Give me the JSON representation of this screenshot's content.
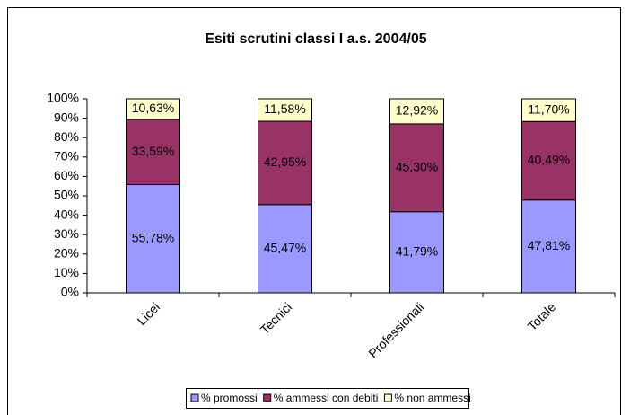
{
  "chart_data": {
    "type": "stacked_bar_100",
    "title": "Esiti scrutini classi I a.s. 2004/05",
    "categories": [
      "Licei",
      "Tecnici",
      "Professionali",
      "Totale"
    ],
    "series": [
      {
        "name": "% promossi",
        "color": "#9999ff",
        "values": [
          55.78,
          45.47,
          41.79,
          47.81
        ],
        "value_labels": [
          "55,78%",
          "45,47%",
          "41,79%",
          "47,81%"
        ]
      },
      {
        "name": "% ammessi con debiti",
        "color": "#993366",
        "values": [
          33.59,
          42.95,
          45.3,
          40.49
        ],
        "value_labels": [
          "33,59%",
          "42,95%",
          "45,30%",
          "40,49%"
        ]
      },
      {
        "name": "% non ammessi",
        "color": "#ffffcc",
        "values": [
          10.63,
          11.58,
          12.92,
          11.7
        ],
        "value_labels": [
          "10,63%",
          "11,58%",
          "12,92%",
          "11,70%"
        ]
      }
    ],
    "ylim": [
      0,
      100
    ],
    "yticks": [
      {
        "value": 0,
        "label": "0%"
      },
      {
        "value": 10,
        "label": "10%"
      },
      {
        "value": 20,
        "label": "20%"
      },
      {
        "value": 30,
        "label": "30%"
      },
      {
        "value": 40,
        "label": "40%"
      },
      {
        "value": 50,
        "label": "50%"
      },
      {
        "value": 60,
        "label": "60%"
      },
      {
        "value": 70,
        "label": "70%"
      },
      {
        "value": 80,
        "label": "80%"
      },
      {
        "value": 90,
        "label": "90%"
      },
      {
        "value": 100,
        "label": "100%"
      }
    ],
    "grid": false,
    "legend": "bottom"
  }
}
